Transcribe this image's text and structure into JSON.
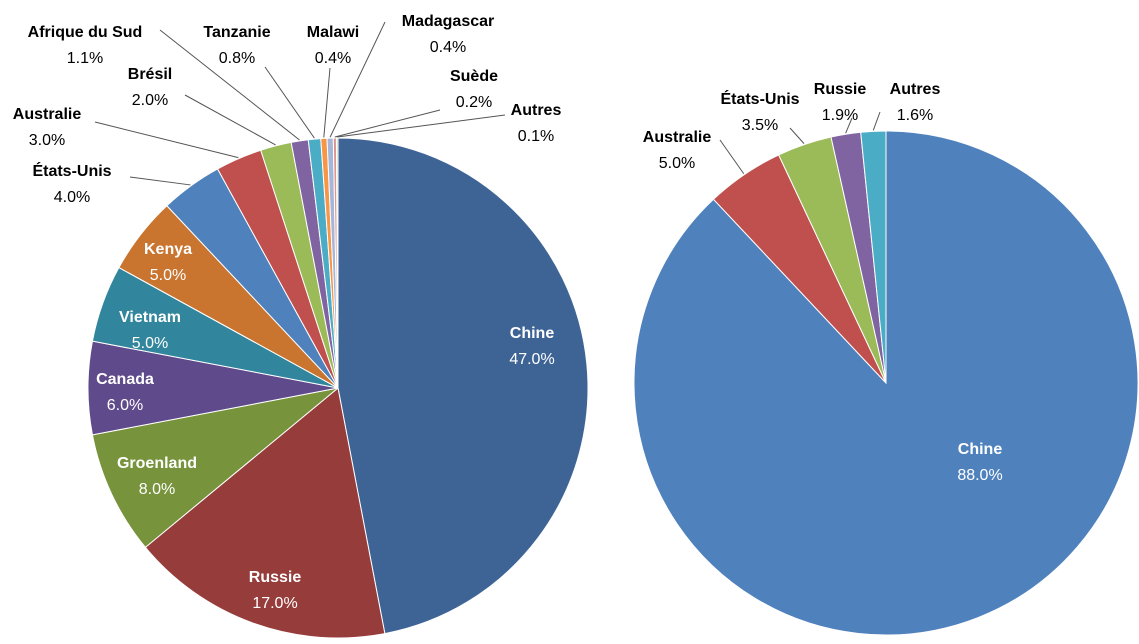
{
  "chart_data": [
    {
      "type": "pie",
      "categories": [
        "Chine",
        "Russie",
        "Groenland",
        "Canada",
        "Vietnam",
        "Kenya",
        "États-Unis",
        "Australie",
        "Brésil",
        "Afrique du Sud",
        "Tanzanie",
        "Malawi",
        "Madagascar",
        "Suède",
        "Autres"
      ],
      "values": [
        47,
        17,
        8,
        6,
        5,
        5,
        4,
        3,
        2,
        1.1,
        0.8,
        0.4,
        0.4,
        0.2,
        0.1
      ],
      "value_labels": [
        "47.0%",
        "17.0%",
        "8.0%",
        "6.0%",
        "5.0%",
        "5.0%",
        "4.0%",
        "3.0%",
        "2.0%",
        "1.1%",
        "0.8%",
        "0.4%",
        "0.4%",
        "0.2%",
        "0.1%"
      ],
      "colors": [
        "#3e6496",
        "#963c3a",
        "#77933c",
        "#5f4b8b",
        "#31859c",
        "#c9742f",
        "#4f81bd",
        "#c0504d",
        "#9bbb59",
        "#8064a2",
        "#4bacc6",
        "#f79646",
        "#a5b6d9",
        "#d99694",
        "#c3d69b"
      ]
    },
    {
      "type": "pie",
      "categories": [
        "Chine",
        "Australie",
        "États-Unis",
        "Russie",
        "Autres"
      ],
      "values": [
        88,
        5,
        3.5,
        1.9,
        1.6
      ],
      "value_labels": [
        "88.0%",
        "5.0%",
        "3.5%",
        "1.9%",
        "1.6%"
      ],
      "colors": [
        "#4f81bd",
        "#c0504d",
        "#9bbb59",
        "#8064a2",
        "#4bacc6"
      ]
    }
  ]
}
